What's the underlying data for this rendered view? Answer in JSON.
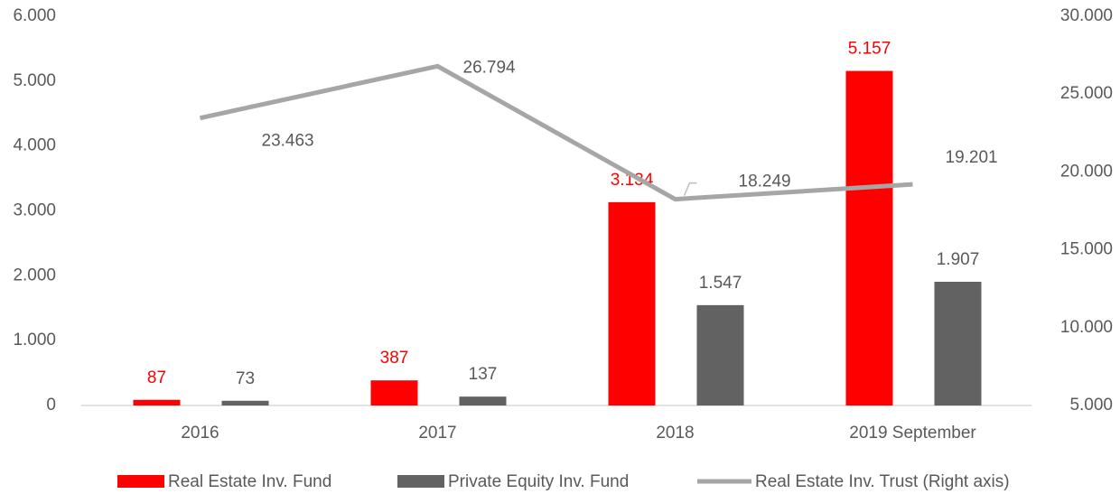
{
  "chart_data": {
    "type": "bar",
    "categories": [
      "2016",
      "2017",
      "2018",
      "2019 September"
    ],
    "series": [
      {
        "name": "Real Estate Inv. Fund",
        "color": "#ff0000",
        "values": [
          87,
          387,
          3134,
          5157
        ],
        "value_labels": [
          "87",
          "387",
          "3.134",
          "5.157"
        ]
      },
      {
        "name": "Private Equity Inv. Fund",
        "color": "#626262",
        "values": [
          73,
          137,
          1547,
          1907
        ],
        "value_labels": [
          "73",
          "137",
          "1.547",
          "1.907"
        ]
      },
      {
        "name": "Real Estate Inv. Trust (Right axis)",
        "type": "line",
        "axis": "y2",
        "color": "#a6a6a6",
        "values": [
          23463,
          26794,
          18249,
          19201
        ],
        "value_labels": [
          "23.463",
          "26.794",
          "18.249",
          "19.201"
        ]
      }
    ],
    "ylim": [
      0,
      6000
    ],
    "yticks": [
      0,
      {
        "value": 1000,
        "label": "1.000"
      },
      {
        "value": 2000,
        "label": "2.000"
      },
      {
        "value": 3000,
        "label": "3.000"
      },
      {
        "value": 4000,
        "label": "4.000"
      },
      {
        "value": 5000,
        "label": "5.000"
      },
      {
        "value": 6000,
        "label": "6.000"
      }
    ],
    "y2lim": [
      5000,
      30000
    ],
    "y2ticks": [
      {
        "value": 5000,
        "label": "5.000"
      },
      {
        "value": 10000,
        "label": "10.000"
      },
      {
        "value": 15000,
        "label": "15.000"
      },
      {
        "value": 20000,
        "label": "20.000"
      },
      {
        "value": 25000,
        "label": "25.000"
      },
      {
        "value": 30000,
        "label": "30.000"
      }
    ],
    "grid": false,
    "legend": "bottom"
  }
}
